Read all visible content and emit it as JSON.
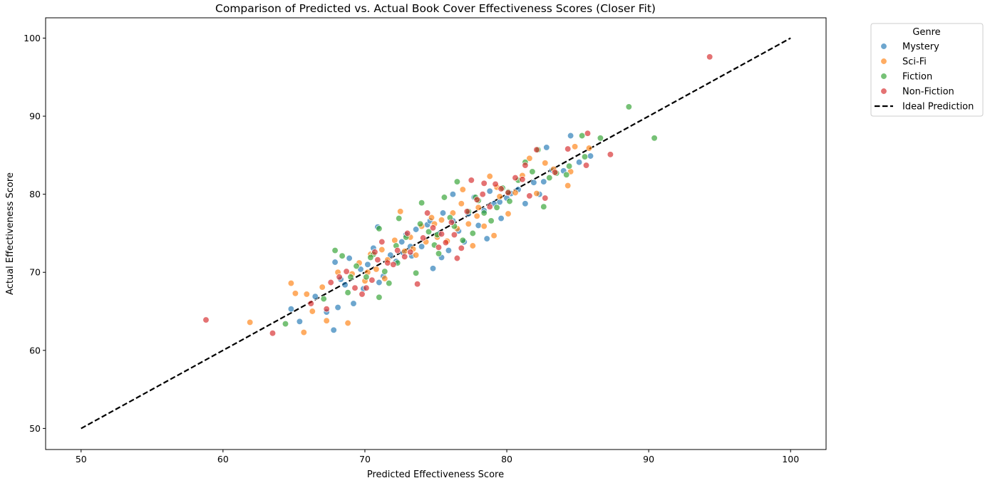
{
  "chart_data": {
    "type": "scatter",
    "title": "Comparison of Predicted vs. Actual Book Cover Effectiveness Scores (Closer Fit)",
    "xlabel": "Predicted Effectiveness Score",
    "ylabel": "Actual Effectiveness Score",
    "xlim": [
      47.5,
      102.5
    ],
    "ylim": [
      47.3,
      102.6
    ],
    "xticks": [
      "50",
      "60",
      "70",
      "80",
      "90",
      "100"
    ],
    "yticks": [
      "50",
      "60",
      "70",
      "80",
      "90",
      "100"
    ],
    "grid": false,
    "legend": {
      "title": "Genre",
      "placement": "outside-upper-right",
      "entries": [
        "Mystery",
        "Sci-Fi",
        "Fiction",
        "Non-Fiction",
        "Ideal Prediction"
      ]
    },
    "ideal_line": {
      "name": "Ideal Prediction",
      "x": [
        50,
        100
      ],
      "y": [
        50,
        100
      ],
      "color": "#000000",
      "style": "dashed"
    },
    "series": [
      {
        "name": "Mystery",
        "color": "#1f77b4",
        "points": [
          [
            64.8,
            65.3
          ],
          [
            65.4,
            63.7
          ],
          [
            66.5,
            66.9
          ],
          [
            67.3,
            64.9
          ],
          [
            67.8,
            62.6
          ],
          [
            68.1,
            65.5
          ],
          [
            67.9,
            71.3
          ],
          [
            68.3,
            69.1
          ],
          [
            68.6,
            68.4
          ],
          [
            68.9,
            71.8
          ],
          [
            69.2,
            66.0
          ],
          [
            69.7,
            70.4
          ],
          [
            70.2,
            71.0
          ],
          [
            70.6,
            73.1
          ],
          [
            70.9,
            75.8
          ],
          [
            71.3,
            69.5
          ],
          [
            71.8,
            72.2
          ],
          [
            72.2,
            71.4
          ],
          [
            72.6,
            73.9
          ],
          [
            72.9,
            74.8
          ],
          [
            73.3,
            72.1
          ],
          [
            73.6,
            75.5
          ],
          [
            74.0,
            73.3
          ],
          [
            74.4,
            76.1
          ],
          [
            74.8,
            70.5
          ],
          [
            75.2,
            74.9
          ],
          [
            75.5,
            77.6
          ],
          [
            75.9,
            72.8
          ],
          [
            76.2,
            76.6
          ],
          [
            76.6,
            75.3
          ],
          [
            77.0,
            73.9
          ],
          [
            77.3,
            77.5
          ],
          [
            77.7,
            79.6
          ],
          [
            78.0,
            76.0
          ],
          [
            78.4,
            77.9
          ],
          [
            78.8,
            80.4
          ],
          [
            79.1,
            78.8
          ],
          [
            79.5,
            79.0
          ],
          [
            80.3,
            80.1
          ],
          [
            80.8,
            80.6
          ],
          [
            81.3,
            78.8
          ],
          [
            81.9,
            81.5
          ],
          [
            82.3,
            80.0
          ],
          [
            82.6,
            81.6
          ],
          [
            82.8,
            86.0
          ],
          [
            83.2,
            83.1
          ],
          [
            84.0,
            83.0
          ],
          [
            84.5,
            87.5
          ],
          [
            85.1,
            84.1
          ],
          [
            85.9,
            84.9
          ],
          [
            76.2,
            80.0
          ],
          [
            74.6,
            76.6
          ],
          [
            73.2,
            73.3
          ],
          [
            75.4,
            71.9
          ],
          [
            78.6,
            74.3
          ],
          [
            79.6,
            76.9
          ],
          [
            80.0,
            79.5
          ],
          [
            72.7,
            72.5
          ],
          [
            71.0,
            68.7
          ],
          [
            69.9,
            67.9
          ]
        ]
      },
      {
        "name": "Sci-Fi",
        "color": "#ff7f0e",
        "points": [
          [
            61.9,
            63.6
          ],
          [
            64.8,
            68.6
          ],
          [
            65.1,
            67.3
          ],
          [
            65.7,
            62.3
          ],
          [
            66.3,
            65.0
          ],
          [
            67.0,
            68.1
          ],
          [
            67.3,
            63.8
          ],
          [
            68.1,
            70.0
          ],
          [
            68.8,
            63.5
          ],
          [
            69.1,
            69.8
          ],
          [
            69.6,
            71.2
          ],
          [
            70.0,
            68.9
          ],
          [
            70.4,
            72.3
          ],
          [
            70.8,
            70.4
          ],
          [
            71.2,
            72.9
          ],
          [
            71.6,
            71.6
          ],
          [
            72.1,
            74.1
          ],
          [
            72.5,
            77.8
          ],
          [
            72.8,
            72.7
          ],
          [
            73.2,
            74.5
          ],
          [
            73.6,
            72.2
          ],
          [
            74.0,
            75.9
          ],
          [
            74.3,
            73.9
          ],
          [
            74.7,
            77.0
          ],
          [
            75.1,
            74.5
          ],
          [
            75.4,
            76.7
          ],
          [
            75.8,
            74.0
          ],
          [
            76.2,
            77.6
          ],
          [
            76.5,
            75.6
          ],
          [
            76.9,
            80.6
          ],
          [
            77.3,
            76.2
          ],
          [
            77.6,
            73.4
          ],
          [
            78.0,
            78.3
          ],
          [
            78.4,
            75.9
          ],
          [
            78.8,
            82.3
          ],
          [
            79.1,
            74.7
          ],
          [
            79.5,
            79.7
          ],
          [
            80.1,
            77.5
          ],
          [
            80.6,
            80.2
          ],
          [
            81.1,
            82.4
          ],
          [
            81.6,
            84.6
          ],
          [
            82.1,
            80.1
          ],
          [
            82.7,
            84.0
          ],
          [
            83.3,
            83.2
          ],
          [
            84.3,
            81.1
          ],
          [
            84.5,
            82.9
          ],
          [
            84.8,
            86.1
          ],
          [
            85.8,
            85.9
          ],
          [
            65.9,
            67.2
          ],
          [
            73.4,
            73.0
          ],
          [
            70.2,
            70.0
          ],
          [
            76.8,
            78.8
          ],
          [
            79.3,
            80.9
          ],
          [
            71.4,
            69.2
          ],
          [
            74.9,
            76.2
          ],
          [
            77.9,
            77.2
          ]
        ]
      },
      {
        "name": "Fiction",
        "color": "#2ca02c",
        "points": [
          [
            64.4,
            63.4
          ],
          [
            67.1,
            66.6
          ],
          [
            67.9,
            72.8
          ],
          [
            68.4,
            72.1
          ],
          [
            68.8,
            67.4
          ],
          [
            69.0,
            69.4
          ],
          [
            69.4,
            70.8
          ],
          [
            70.1,
            69.4
          ],
          [
            70.6,
            72.3
          ],
          [
            71.0,
            66.8
          ],
          [
            71.0,
            75.6
          ],
          [
            71.4,
            70.1
          ],
          [
            71.7,
            68.6
          ],
          [
            72.3,
            71.2
          ],
          [
            72.4,
            76.9
          ],
          [
            72.9,
            74.5
          ],
          [
            73.6,
            69.9
          ],
          [
            74.0,
            78.9
          ],
          [
            74.5,
            75.2
          ],
          [
            74.9,
            73.5
          ],
          [
            75.2,
            72.4
          ],
          [
            75.6,
            79.6
          ],
          [
            76.0,
            77.0
          ],
          [
            76.3,
            75.9
          ],
          [
            76.5,
            81.6
          ],
          [
            76.9,
            74.1
          ],
          [
            77.3,
            77.8
          ],
          [
            77.6,
            75.0
          ],
          [
            78.0,
            79.2
          ],
          [
            78.4,
            77.6
          ],
          [
            78.9,
            76.6
          ],
          [
            79.3,
            78.3
          ],
          [
            79.7,
            80.8
          ],
          [
            80.2,
            79.1
          ],
          [
            80.8,
            81.8
          ],
          [
            81.3,
            84.1
          ],
          [
            81.8,
            82.9
          ],
          [
            82.2,
            85.7
          ],
          [
            82.6,
            78.4
          ],
          [
            83.0,
            82.1
          ],
          [
            83.5,
            82.7
          ],
          [
            84.2,
            82.5
          ],
          [
            84.4,
            83.6
          ],
          [
            85.3,
            87.5
          ],
          [
            85.5,
            84.8
          ],
          [
            86.6,
            87.2
          ],
          [
            88.6,
            91.2
          ],
          [
            90.4,
            87.2
          ],
          [
            72.2,
            73.4
          ],
          [
            75.1,
            74.8
          ],
          [
            77.8,
            79.6
          ],
          [
            73.9,
            76.2
          ],
          [
            70.4,
            71.9
          ],
          [
            80.1,
            80.3
          ]
        ]
      },
      {
        "name": "Non-Fiction",
        "color": "#d62728",
        "points": [
          [
            58.8,
            63.9
          ],
          [
            63.5,
            62.2
          ],
          [
            66.2,
            66.0
          ],
          [
            67.3,
            65.3
          ],
          [
            67.6,
            68.7
          ],
          [
            68.2,
            69.4
          ],
          [
            68.7,
            70.1
          ],
          [
            69.3,
            68.0
          ],
          [
            69.8,
            67.2
          ],
          [
            70.1,
            68.0
          ],
          [
            70.5,
            69.0
          ],
          [
            70.9,
            71.6
          ],
          [
            71.2,
            73.9
          ],
          [
            71.6,
            71.2
          ],
          [
            72.0,
            71.0
          ],
          [
            72.3,
            72.8
          ],
          [
            72.8,
            72.0
          ],
          [
            73.2,
            72.6
          ],
          [
            73.7,
            68.5
          ],
          [
            74.1,
            74.4
          ],
          [
            74.4,
            77.6
          ],
          [
            74.8,
            75.7
          ],
          [
            75.2,
            73.2
          ],
          [
            75.7,
            73.8
          ],
          [
            76.1,
            76.4
          ],
          [
            76.5,
            71.8
          ],
          [
            76.8,
            73.1
          ],
          [
            77.2,
            77.8
          ],
          [
            77.5,
            81.8
          ],
          [
            77.9,
            79.3
          ],
          [
            78.4,
            81.4
          ],
          [
            78.8,
            78.4
          ],
          [
            79.2,
            81.3
          ],
          [
            79.6,
            80.7
          ],
          [
            80.1,
            80.2
          ],
          [
            80.6,
            82.1
          ],
          [
            81.1,
            81.9
          ],
          [
            81.6,
            79.8
          ],
          [
            82.1,
            85.7
          ],
          [
            82.7,
            79.5
          ],
          [
            83.4,
            82.8
          ],
          [
            84.3,
            85.8
          ],
          [
            85.6,
            83.7
          ],
          [
            85.7,
            87.8
          ],
          [
            87.3,
            85.1
          ],
          [
            94.3,
            97.6
          ],
          [
            75.4,
            74.9
          ],
          [
            73.0,
            75.0
          ],
          [
            78.3,
            80.0
          ],
          [
            81.3,
            83.7
          ],
          [
            70.7,
            72.6
          ],
          [
            76.3,
            74.8
          ]
        ]
      }
    ]
  }
}
